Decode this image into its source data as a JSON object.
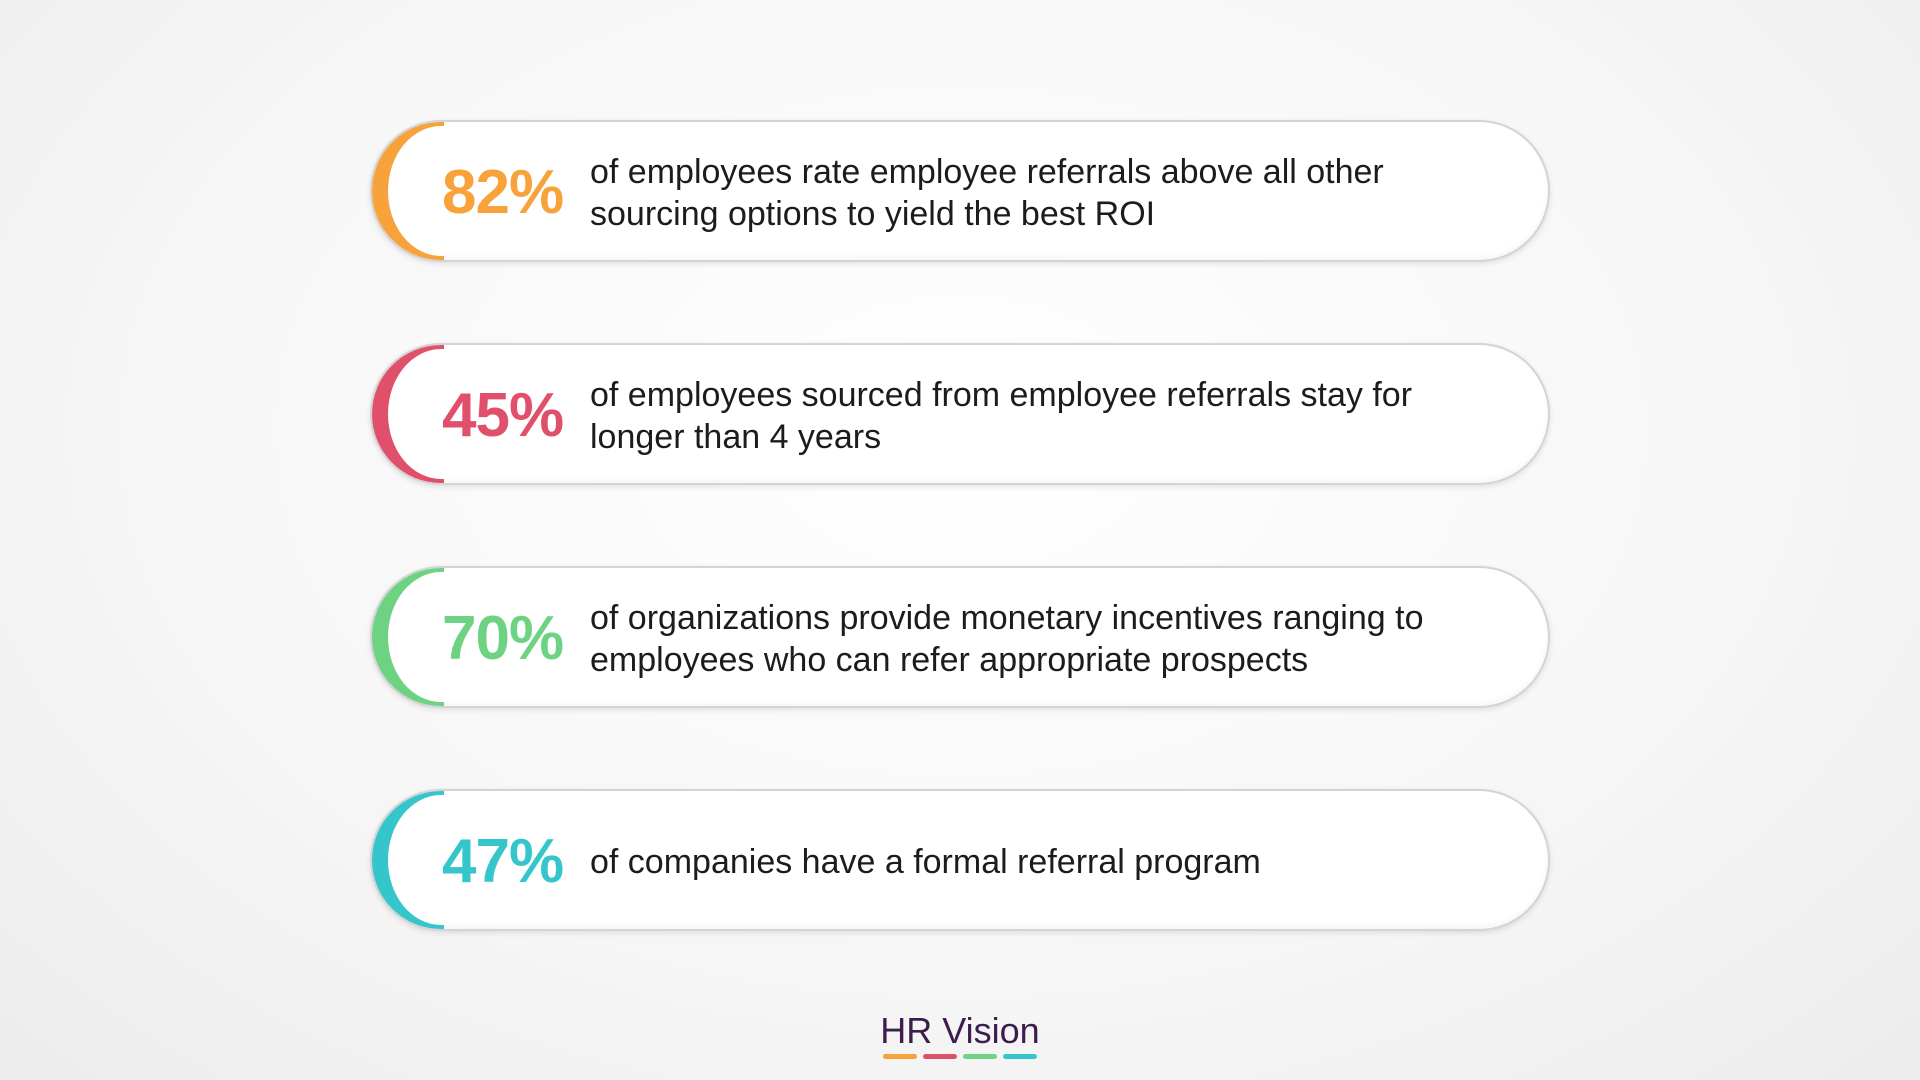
{
  "stats": [
    {
      "percent": "82%",
      "text": "of employees rate employee referrals above all other sourcing options to yield the best ROI",
      "color": "#f7a23b"
    },
    {
      "percent": "45%",
      "text": "of employees sourced from employee referrals stay for longer than 4 years",
      "color": "#e0506a"
    },
    {
      "percent": "70%",
      "text": "of organizations provide monetary incentives ranging to employees who can refer appropriate prospects",
      "color": "#6dd383"
    },
    {
      "percent": "47%",
      "text": "of companies have a formal referral program",
      "color": "#35c6cc"
    }
  ],
  "brand": {
    "name": "HR Vision",
    "bar_colors": [
      "#f7a23b",
      "#e0506a",
      "#6dd383",
      "#35c6cc"
    ]
  }
}
